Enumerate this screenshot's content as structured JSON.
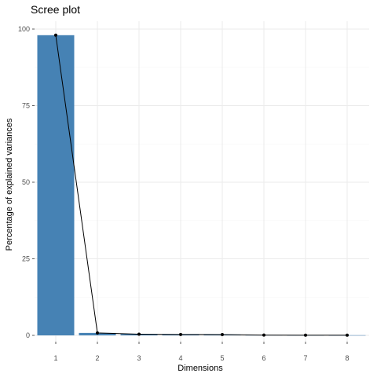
{
  "chart_data": {
    "type": "bar",
    "title": "Scree plot",
    "xlabel": "Dimensions",
    "ylabel": "Percentage of explained variances",
    "categories": [
      "1",
      "2",
      "3",
      "4",
      "5",
      "6",
      "7",
      "8"
    ],
    "values": [
      98.0,
      0.8,
      0.4,
      0.3,
      0.25,
      0.1,
      0.07,
      0.05
    ],
    "ylim": [
      0,
      100
    ],
    "yticks": [
      0,
      25,
      50,
      75,
      100
    ],
    "grid": true,
    "overlay_line": true,
    "colors": {
      "bar": "#4682B4",
      "line": "#000000",
      "grid_major": "#ebebeb",
      "grid_minor": "#f5f5f5"
    }
  }
}
